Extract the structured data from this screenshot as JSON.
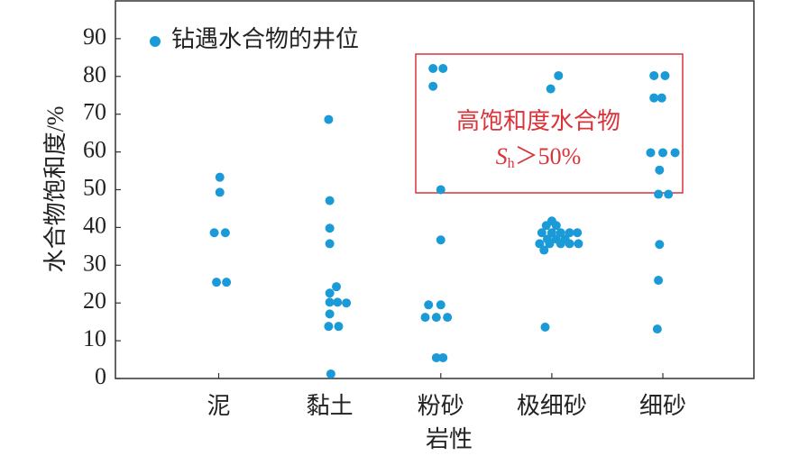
{
  "chart_data": {
    "type": "scatter",
    "xlabel": "岩性",
    "ylabel": "水合物饱和度/%",
    "xlim": [
      -0.93,
      4.82
    ],
    "ylim": [
      0,
      100
    ],
    "xticks": [
      {
        "value": 0,
        "label": "泥"
      },
      {
        "value": 1,
        "label": "黏土"
      },
      {
        "value": 2,
        "label": "粉砂"
      },
      {
        "value": 3,
        "label": "极细砂"
      },
      {
        "value": 4,
        "label": "细砂"
      }
    ],
    "yticks": [
      0,
      10,
      20,
      30,
      40,
      50,
      60,
      70,
      80,
      90
    ],
    "legend": "upper left",
    "series": [
      {
        "name": "钻遇水合物的井位",
        "color": "#1a9ad6",
        "x": [
          0.01,
          0.01,
          -0.04,
          0.06,
          -0.02,
          0.07,
          0.99,
          1.0,
          1.0,
          1.0,
          1.06,
          1.0,
          1.07,
          1.15,
          1.0,
          1.0,
          0.99,
          1.08,
          1.01,
          1.93,
          2.02,
          1.93,
          2.0,
          2.0,
          1.89,
          2.0,
          1.86,
          1.96,
          2.06,
          1.96,
          2.02,
          3.06,
          2.99,
          3.0,
          2.95,
          3.04,
          2.91,
          3.0,
          3.08,
          3.16,
          3.23,
          2.96,
          3.04,
          3.12,
          2.89,
          2.98,
          3.08,
          3.16,
          3.24,
          2.93,
          2.94,
          3.92,
          4.02,
          3.92,
          3.99,
          3.89,
          4.0,
          4.11,
          3.97,
          3.96,
          4.05,
          3.97,
          3.96,
          3.95
        ],
        "values": [
          53.3,
          49.3,
          38.6,
          38.6,
          25.5,
          25.5,
          68.6,
          47.1,
          39.8,
          35.7,
          24.3,
          22.6,
          20.2,
          20,
          20.2,
          17.1,
          13.8,
          13.8,
          1.2,
          82.1,
          82.1,
          77.4,
          50,
          36.7,
          19.5,
          19.5,
          16.2,
          16.2,
          16.2,
          5.5,
          5.5,
          80.2,
          76.7,
          41.7,
          40.5,
          40.5,
          38.6,
          38.6,
          38.6,
          38.6,
          38.6,
          36.9,
          36.9,
          36.9,
          35.7,
          35.7,
          35.7,
          35.7,
          35.7,
          34,
          13.6,
          80.2,
          80.2,
          74.3,
          74.3,
          59.8,
          59.8,
          59.8,
          55.2,
          48.8,
          48.8,
          35.5,
          26,
          13.1
        ]
      }
    ],
    "annotations": [
      {
        "text": "高饱和度水合物"
      },
      {
        "parts": [
          "S",
          "h",
          "＞50%"
        ]
      }
    ]
  }
}
